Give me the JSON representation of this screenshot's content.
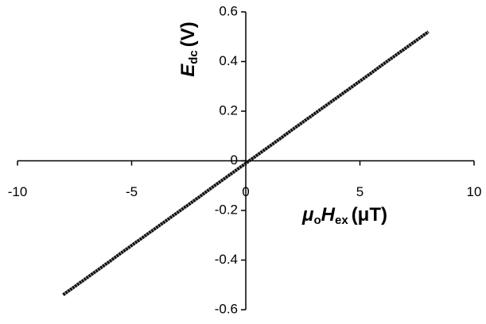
{
  "chart_data": {
    "type": "line",
    "y_label": {
      "symbol": "E",
      "sub": "dc",
      "unit": "(V)"
    },
    "x_label": {
      "symbol1": "μ",
      "sub1": "o",
      "symbol2": "H",
      "sub2": "ex",
      "unit": "(μT)"
    },
    "x": [
      -8,
      -7.5,
      -7,
      -6.5,
      -6,
      -5.5,
      -5,
      -4.5,
      -4,
      -3.5,
      -3,
      -2.5,
      -2,
      -1.5,
      -1,
      -0.5,
      0,
      0.5,
      1,
      1.5,
      2,
      2.5,
      3,
      3.5,
      4,
      4.5,
      5,
      5.5,
      6,
      6.5,
      7,
      7.5,
      8
    ],
    "values": [
      -0.54,
      -0.507,
      -0.474,
      -0.441,
      -0.408,
      -0.374,
      -0.341,
      -0.308,
      -0.275,
      -0.242,
      -0.209,
      -0.176,
      -0.143,
      -0.109,
      -0.076,
      -0.043,
      -0.01,
      0.023,
      0.056,
      0.089,
      0.123,
      0.156,
      0.189,
      0.222,
      0.255,
      0.288,
      0.321,
      0.354,
      0.388,
      0.421,
      0.454,
      0.487,
      0.52
    ],
    "color": "#111111",
    "xlim": [
      -10,
      10
    ],
    "xticks": [
      -10,
      -5,
      0,
      5,
      10
    ],
    "ylim": [
      -0.6,
      0.6
    ],
    "yticks": [
      -0.6,
      -0.4,
      -0.2,
      0,
      0.2,
      0.4,
      0.6
    ],
    "grid": false
  }
}
